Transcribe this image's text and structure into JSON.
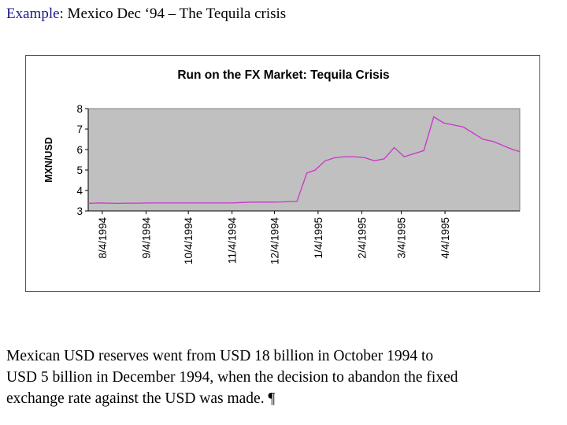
{
  "slide": {
    "title_keyword": "Example",
    "title_rest": ": Mexico Dec ‘94 – The Tequila crisis",
    "body_lines": [
      "Mexican USD reserves went from USD 18 billion in October 1994 to",
      "USD 5 billion in December 1994, when the decision to abandon the fixed",
      "exchange rate against the USD was made. ¶"
    ]
  },
  "colors": {
    "title_keyword": "#1a1a8c",
    "plot_background": "#c0c0c0",
    "series_line": "#cc33cc"
  },
  "chart_data": {
    "type": "line",
    "title": "Run on the FX Market: Tequila Crisis",
    "xlabel": "",
    "ylabel": "MXN/USD",
    "ylim": [
      3,
      8
    ],
    "yticks": [
      3,
      4,
      5,
      6,
      7,
      8
    ],
    "xlim": [
      "1994-07-25",
      "1995-05-27"
    ],
    "xticks": [
      "1994-08-04",
      "1994-09-04",
      "1994-10-04",
      "1994-11-04",
      "1994-12-04",
      "1995-01-04",
      "1995-02-04",
      "1995-03-04",
      "1995-04-04"
    ],
    "xtick_labels": [
      "8/4/1994",
      "9/4/1994",
      "10/4/1994",
      "11/4/1994",
      "12/4/1994",
      "1/4/1995",
      "2/4/1995",
      "3/4/1995",
      "4/4/1995"
    ],
    "grid": false,
    "legend": "none",
    "series": [
      {
        "x": [
          "1994-07-25",
          "1994-08-01",
          "1994-08-08",
          "1994-08-15",
          "1994-08-22",
          "1994-08-29",
          "1994-09-05",
          "1994-09-15",
          "1994-09-25",
          "1994-10-05",
          "1994-10-15",
          "1994-10-25",
          "1994-11-04",
          "1994-11-11",
          "1994-11-18",
          "1994-11-25",
          "1994-12-02",
          "1994-12-09",
          "1994-12-16",
          "1994-12-20",
          "1994-12-27",
          "1995-01-02",
          "1995-01-09",
          "1995-01-16",
          "1995-01-23",
          "1995-01-30",
          "1995-02-06",
          "1995-02-13",
          "1995-02-20",
          "1995-02-27",
          "1995-03-06",
          "1995-03-13",
          "1995-03-20",
          "1995-03-27",
          "1995-04-03",
          "1995-04-10",
          "1995-04-17",
          "1995-04-24",
          "1995-05-01",
          "1995-05-08",
          "1995-05-15",
          "1995-05-22",
          "1995-05-27"
        ],
        "y": [
          3.37,
          3.39,
          3.38,
          3.37,
          3.38,
          3.38,
          3.39,
          3.39,
          3.39,
          3.39,
          3.39,
          3.39,
          3.39,
          3.41,
          3.43,
          3.43,
          3.43,
          3.44,
          3.46,
          3.46,
          4.85,
          5.0,
          5.45,
          5.6,
          5.65,
          5.65,
          5.6,
          5.45,
          5.55,
          6.1,
          5.65,
          5.8,
          5.95,
          7.6,
          7.3,
          7.2,
          7.1,
          6.8,
          6.5,
          6.4,
          6.2,
          6.0,
          5.9
        ]
      }
    ]
  }
}
